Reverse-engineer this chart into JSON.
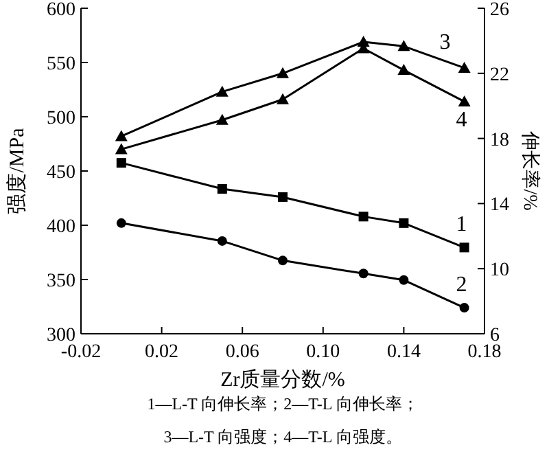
{
  "chart_data": {
    "type": "line",
    "xlabel": "Zr质量分数/%",
    "ylabel": "强度/MPa",
    "y2label": "伸长率/%",
    "x": [
      0,
      0.05,
      0.08,
      0.12,
      0.14,
      0.17
    ],
    "xlim": [
      -0.02,
      0.18
    ],
    "xticks": [
      -0.02,
      0.02,
      0.06,
      {
        "value": 0.1,
        "label": "0.10"
      },
      0.14,
      0.18
    ],
    "ylim": [
      300,
      600
    ],
    "yticks": [
      300,
      350,
      400,
      450,
      500,
      550,
      600
    ],
    "y2lim": [
      6,
      26
    ],
    "y2ticks": [
      6,
      10,
      14,
      18,
      22,
      26
    ],
    "legend": false,
    "grid": false,
    "line_style": "solid",
    "series": [
      {
        "name": "1",
        "color": "#000000",
        "marker": "square",
        "axis": "y2",
        "values": [
          16.5,
          14.9,
          14.4,
          13.2,
          12.8,
          11.3
        ]
      },
      {
        "name": "2",
        "color": "#000000",
        "marker": "circle",
        "axis": "y2",
        "values": [
          12.8,
          11.7,
          10.5,
          9.7,
          9.3,
          7.6
        ]
      },
      {
        "name": "3",
        "color": "#000000",
        "marker": "triangle",
        "values": [
          482,
          523,
          540,
          569,
          565,
          545
        ]
      },
      {
        "name": "4",
        "color": "#000000",
        "marker": "triangle",
        "values": [
          470,
          497,
          516,
          563,
          543,
          514
        ]
      }
    ],
    "annotations": [
      "1—L-T 向伸长率；2—T-L 向伸长率；",
      "3—L-T 向强度；4—T-L 向强度。"
    ]
  }
}
